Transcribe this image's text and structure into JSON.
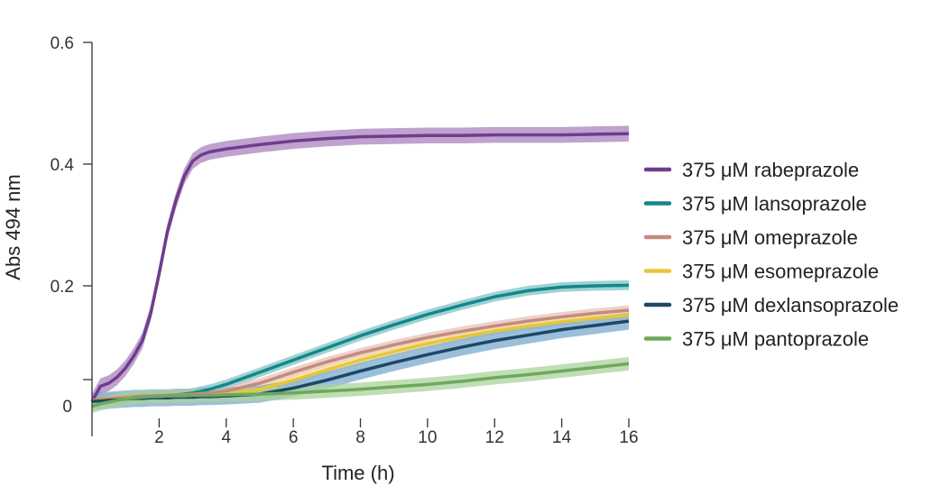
{
  "chart_data": {
    "type": "line",
    "title": "",
    "xlabel": "Time (h)",
    "ylabel": "Abs 494 nm",
    "xlim": [
      0,
      16
    ],
    "ylim": [
      0,
      0.6
    ],
    "x_ticks": [
      2,
      4,
      6,
      8,
      10,
      12,
      14,
      16
    ],
    "x_tick_labels": [
      "2",
      "4",
      "6",
      "8",
      "10",
      "12",
      "14",
      "16"
    ],
    "y_ticks": [
      0.6,
      0.4,
      0.2
    ],
    "y_tick_labels": [
      "0.6",
      "0.4",
      "0.2"
    ],
    "y_zero_label": "0",
    "legend_position": "right",
    "grid": false,
    "x": [
      0,
      0.25,
      0.5,
      0.75,
      1,
      1.25,
      1.5,
      1.75,
      2,
      2.25,
      2.5,
      2.75,
      3,
      3.25,
      3.5,
      4,
      5,
      6,
      7,
      8,
      9,
      10,
      11,
      12,
      13,
      14,
      15,
      16
    ],
    "series": [
      {
        "name": "375 μM rabeprazole",
        "color": "#6f3d8c",
        "band_color": "#a983bf",
        "values": [
          0.01,
          0.035,
          0.04,
          0.05,
          0.065,
          0.085,
          0.11,
          0.155,
          0.22,
          0.29,
          0.34,
          0.38,
          0.405,
          0.415,
          0.42,
          0.425,
          0.432,
          0.438,
          0.442,
          0.445,
          0.446,
          0.447,
          0.447,
          0.448,
          0.448,
          0.448,
          0.449,
          0.45
        ],
        "band": 0.013
      },
      {
        "name": "375 μM lansoprazole",
        "color": "#15868a",
        "band_color": "#7fc4c4",
        "values": [
          0.01,
          0.012,
          0.013,
          0.014,
          0.015,
          0.016,
          0.017,
          0.018,
          0.019,
          0.02,
          0.021,
          0.022,
          0.024,
          0.027,
          0.03,
          0.038,
          0.058,
          0.078,
          0.098,
          0.118,
          0.136,
          0.153,
          0.168,
          0.182,
          0.192,
          0.198,
          0.2,
          0.201
        ],
        "band": 0.008
      },
      {
        "name": "375 μM omeprazole",
        "color": "#c48a7f",
        "band_color": "#e6c2ba",
        "values": [
          0.012,
          0.014,
          0.015,
          0.016,
          0.017,
          0.018,
          0.019,
          0.019,
          0.02,
          0.02,
          0.021,
          0.021,
          0.022,
          0.023,
          0.024,
          0.027,
          0.04,
          0.058,
          0.075,
          0.09,
          0.103,
          0.115,
          0.125,
          0.134,
          0.142,
          0.149,
          0.155,
          0.16
        ],
        "band": 0.008
      },
      {
        "name": "375 μM esomeprazole",
        "color": "#e8c53a",
        "band_color": "#f4e297",
        "values": [
          0.01,
          0.012,
          0.013,
          0.014,
          0.015,
          0.016,
          0.016,
          0.017,
          0.017,
          0.018,
          0.018,
          0.019,
          0.019,
          0.02,
          0.02,
          0.022,
          0.03,
          0.045,
          0.062,
          0.078,
          0.092,
          0.105,
          0.116,
          0.126,
          0.134,
          0.141,
          0.147,
          0.152
        ],
        "band": 0.007
      },
      {
        "name": "375 μM dexlansoprazole",
        "color": "#1d4766",
        "band_color": "#7aa9cf",
        "values": [
          0.01,
          0.011,
          0.012,
          0.013,
          0.014,
          0.015,
          0.015,
          0.016,
          0.016,
          0.016,
          0.017,
          0.017,
          0.017,
          0.018,
          0.018,
          0.019,
          0.022,
          0.032,
          0.045,
          0.06,
          0.074,
          0.087,
          0.099,
          0.11,
          0.119,
          0.128,
          0.135,
          0.142
        ],
        "band": 0.014
      },
      {
        "name": "375 μM pantoprazole",
        "color": "#6ea85c",
        "band_color": "#a9d39b",
        "values": [
          0.002,
          0.006,
          0.009,
          0.012,
          0.014,
          0.016,
          0.017,
          0.018,
          0.018,
          0.019,
          0.019,
          0.019,
          0.02,
          0.02,
          0.02,
          0.021,
          0.022,
          0.024,
          0.027,
          0.03,
          0.034,
          0.038,
          0.043,
          0.049,
          0.054,
          0.06,
          0.066,
          0.072
        ],
        "band": 0.011
      }
    ]
  }
}
